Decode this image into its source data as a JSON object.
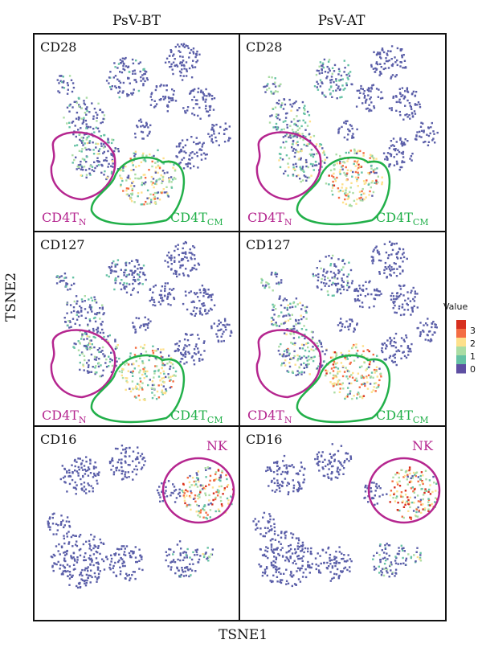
{
  "columns": [
    "PsV-BT",
    "PsV-AT"
  ],
  "x_axis_label": "TSNE1",
  "y_axis_label": "TSNE2",
  "legend": {
    "title": "Value",
    "ticks": [
      "3",
      "2",
      "1",
      "0"
    ],
    "colors": [
      "#d7301f",
      "#f46d43",
      "#fee08b",
      "#abdda4",
      "#66c2a5",
      "#5e4fa2"
    ]
  },
  "chart_data": {
    "type": "scatter",
    "rows": [
      {
        "marker": "CD28",
        "gates": [
          {
            "label": "CD4T",
            "sub": "N",
            "color": "#b5268f"
          },
          {
            "label": "CD4T",
            "sub": "CM",
            "color": "#22b04a"
          }
        ]
      },
      {
        "marker": "CD127",
        "gates": [
          {
            "label": "CD4T",
            "sub": "N",
            "color": "#b5268f"
          },
          {
            "label": "CD4T",
            "sub": "CM",
            "color": "#22b04a"
          }
        ]
      },
      {
        "marker": "CD16",
        "gates": [
          {
            "label": "NK",
            "sub": "",
            "color": "#b5268f"
          }
        ]
      }
    ],
    "value_range": [
      0,
      3.4
    ],
    "point_color_base": "#5a5ea8"
  }
}
